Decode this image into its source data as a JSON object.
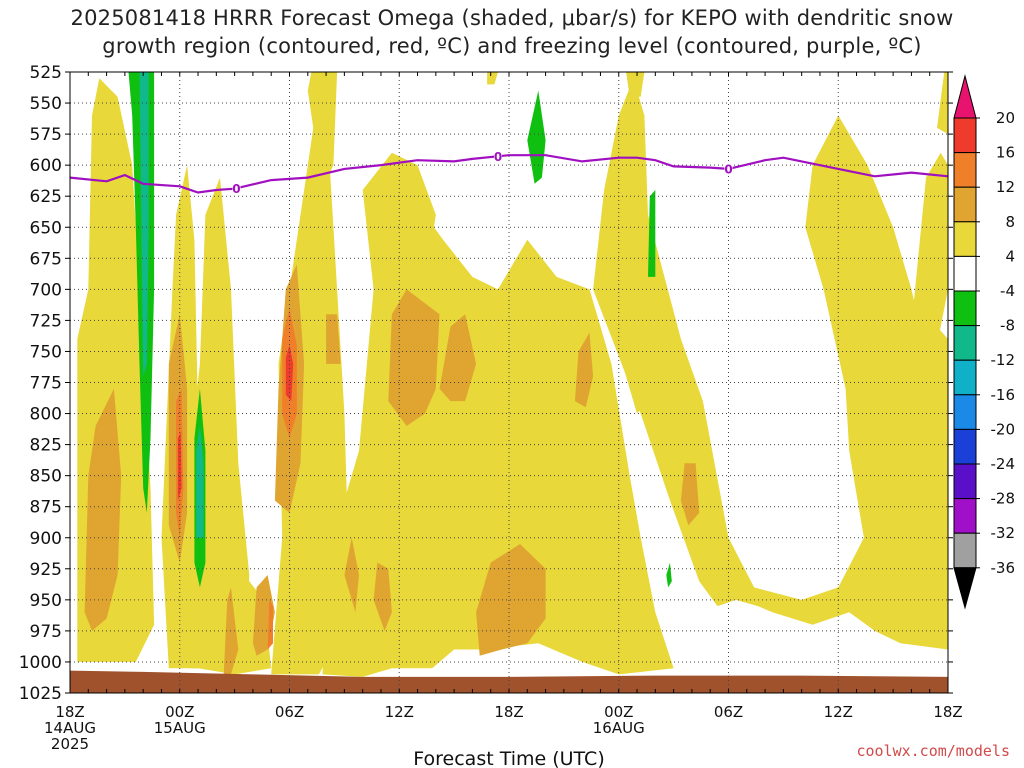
{
  "title": {
    "line1": "2025081418 HRRR Forecast Omega (shaded, μbar/s) for KEPO with dendritic snow",
    "line2": "growth region (contoured, red, ºC) and freezing level (contoured, purple, ºC)"
  },
  "credit": "coolwx.com/models",
  "chart_data": {
    "type": "heatmap",
    "xlabel": "Forecast Time (UTC)",
    "ylabel": "",
    "x_range_hours": [
      0,
      48
    ],
    "x_ticks": [
      {
        "hour": 0,
        "lines": [
          "18Z",
          "14AUG",
          "2025"
        ]
      },
      {
        "hour": 6,
        "lines": [
          "00Z",
          "15AUG"
        ]
      },
      {
        "hour": 12,
        "lines": [
          "06Z"
        ]
      },
      {
        "hour": 18,
        "lines": [
          "12Z"
        ]
      },
      {
        "hour": 24,
        "lines": [
          "18Z"
        ]
      },
      {
        "hour": 30,
        "lines": [
          "00Z",
          "16AUG"
        ]
      },
      {
        "hour": 36,
        "lines": [
          "06Z"
        ]
      },
      {
        "hour": 42,
        "lines": [
          "12Z"
        ]
      },
      {
        "hour": 48,
        "lines": [
          "18Z"
        ]
      }
    ],
    "y_range_hPa": [
      1025,
      525
    ],
    "y_ticks": [
      525,
      550,
      575,
      600,
      625,
      650,
      675,
      700,
      725,
      750,
      775,
      800,
      825,
      850,
      875,
      900,
      925,
      950,
      975,
      1000,
      1025
    ],
    "colorbar": {
      "unit": "μbar/s",
      "labels": [
        "20",
        "16",
        "12",
        "8",
        "4",
        "-4",
        "-8",
        "-12",
        "-16",
        "-20",
        "-24",
        "-28",
        "-32",
        "-36"
      ],
      "colors": [
        "#e8136f",
        "#ef3b2c",
        "#f07f2a",
        "#e0a531",
        "#e8d83a",
        "#ffffff",
        "#10c010",
        "#10b88a",
        "#10b0c8",
        "#1a8ae6",
        "#1a40d8",
        "#5a10c8",
        "#a010c8",
        "#a0a0a0",
        "#000000"
      ]
    },
    "freezing_level": {
      "label": "0",
      "color": "#a010c0",
      "points": [
        [
          0,
          610
        ],
        [
          2,
          613
        ],
        [
          3,
          608
        ],
        [
          4,
          615
        ],
        [
          6,
          617
        ],
        [
          7,
          622
        ],
        [
          8,
          620
        ],
        [
          9,
          619
        ],
        [
          11,
          612
        ],
        [
          13,
          610
        ],
        [
          15,
          603
        ],
        [
          17,
          600
        ],
        [
          19,
          596
        ],
        [
          21,
          597
        ],
        [
          22,
          595
        ],
        [
          24,
          592
        ],
        [
          26,
          592
        ],
        [
          28,
          597
        ],
        [
          30,
          594
        ],
        [
          31,
          594
        ],
        [
          32,
          596
        ],
        [
          33,
          601
        ],
        [
          35,
          602
        ],
        [
          36,
          603
        ],
        [
          38,
          596
        ],
        [
          39,
          594
        ],
        [
          40,
          597
        ],
        [
          42,
          603
        ],
        [
          44,
          609
        ],
        [
          46,
          606
        ],
        [
          48,
          609
        ]
      ],
      "label_hours": [
        9.1,
        23.4,
        36.0
      ]
    },
    "omega_regions": [
      {
        "range": "4 to 8",
        "approx_extent": "widespread, 525-1010 hPa"
      },
      {
        "range": "8 to 12",
        "approx_extent": "lower/mid levels 700-1000 hPa"
      },
      {
        "range": "12 to 16",
        "approx_extent": "near 06Z 15AUG, 740-810 hPa"
      },
      {
        "range": "-4 to -12",
        "approx_extent": "near 21Z 14AUG, 525-880 hPa"
      }
    ],
    "terrain_color": "#a0522d"
  }
}
